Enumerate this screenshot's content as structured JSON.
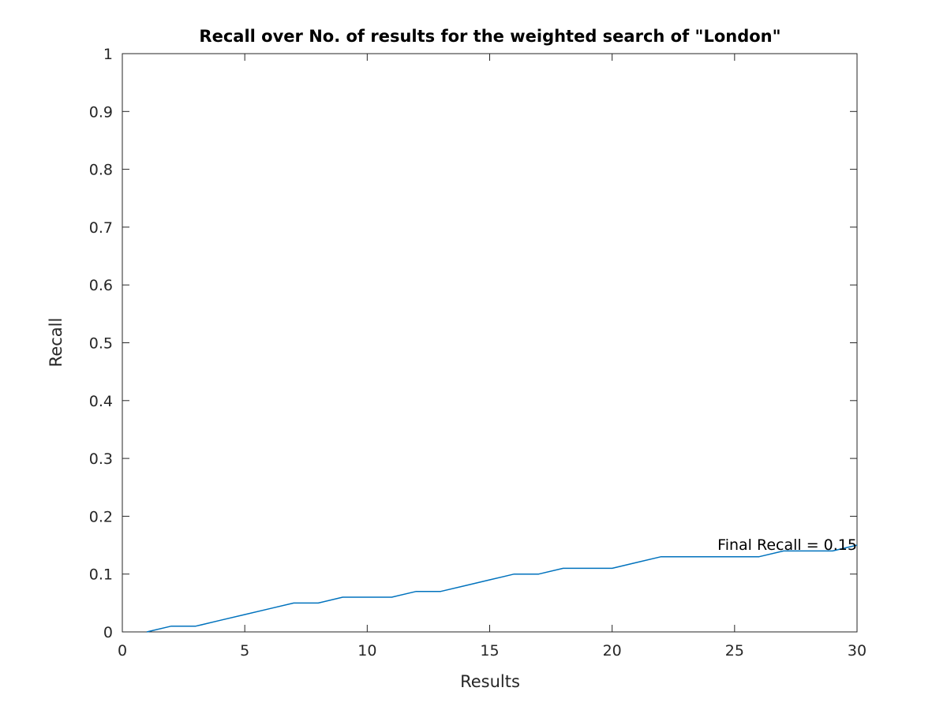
{
  "chart_data": {
    "type": "line",
    "title": "Recall over No. of results for the weighted search of \"London\"",
    "xlabel": "Results",
    "ylabel": "Recall",
    "xlim": [
      0,
      30
    ],
    "ylim": [
      0,
      1
    ],
    "xticks": [
      0,
      5,
      10,
      15,
      20,
      25,
      30
    ],
    "yticks": [
      0,
      0.1,
      0.2,
      0.3,
      0.4,
      0.5,
      0.6,
      0.7,
      0.8,
      0.9,
      1
    ],
    "ytick_labels": [
      "0",
      "0.1",
      "0.2",
      "0.3",
      "0.4",
      "0.5",
      "0.6",
      "0.7",
      "0.8",
      "0.9",
      "1"
    ],
    "grid": false,
    "series": [
      {
        "color": "#0072bd",
        "x": [
          1,
          2,
          3,
          4,
          5,
          6,
          7,
          8,
          9,
          10,
          11,
          12,
          13,
          14,
          15,
          16,
          17,
          18,
          19,
          20,
          21,
          22,
          23,
          24,
          25,
          26,
          27,
          28,
          29,
          30
        ],
        "y": [
          0,
          0.01,
          0.01,
          0.02,
          0.03,
          0.04,
          0.05,
          0.05,
          0.06,
          0.06,
          0.06,
          0.07,
          0.07,
          0.08,
          0.09,
          0.1,
          0.1,
          0.11,
          0.11,
          0.11,
          0.12,
          0.13,
          0.13,
          0.13,
          0.13,
          0.13,
          0.14,
          0.14,
          0.14,
          0.15
        ]
      }
    ],
    "annotations": [
      {
        "text": "Final Recall = 0.15",
        "x": 30,
        "y": 0.15
      }
    ]
  }
}
